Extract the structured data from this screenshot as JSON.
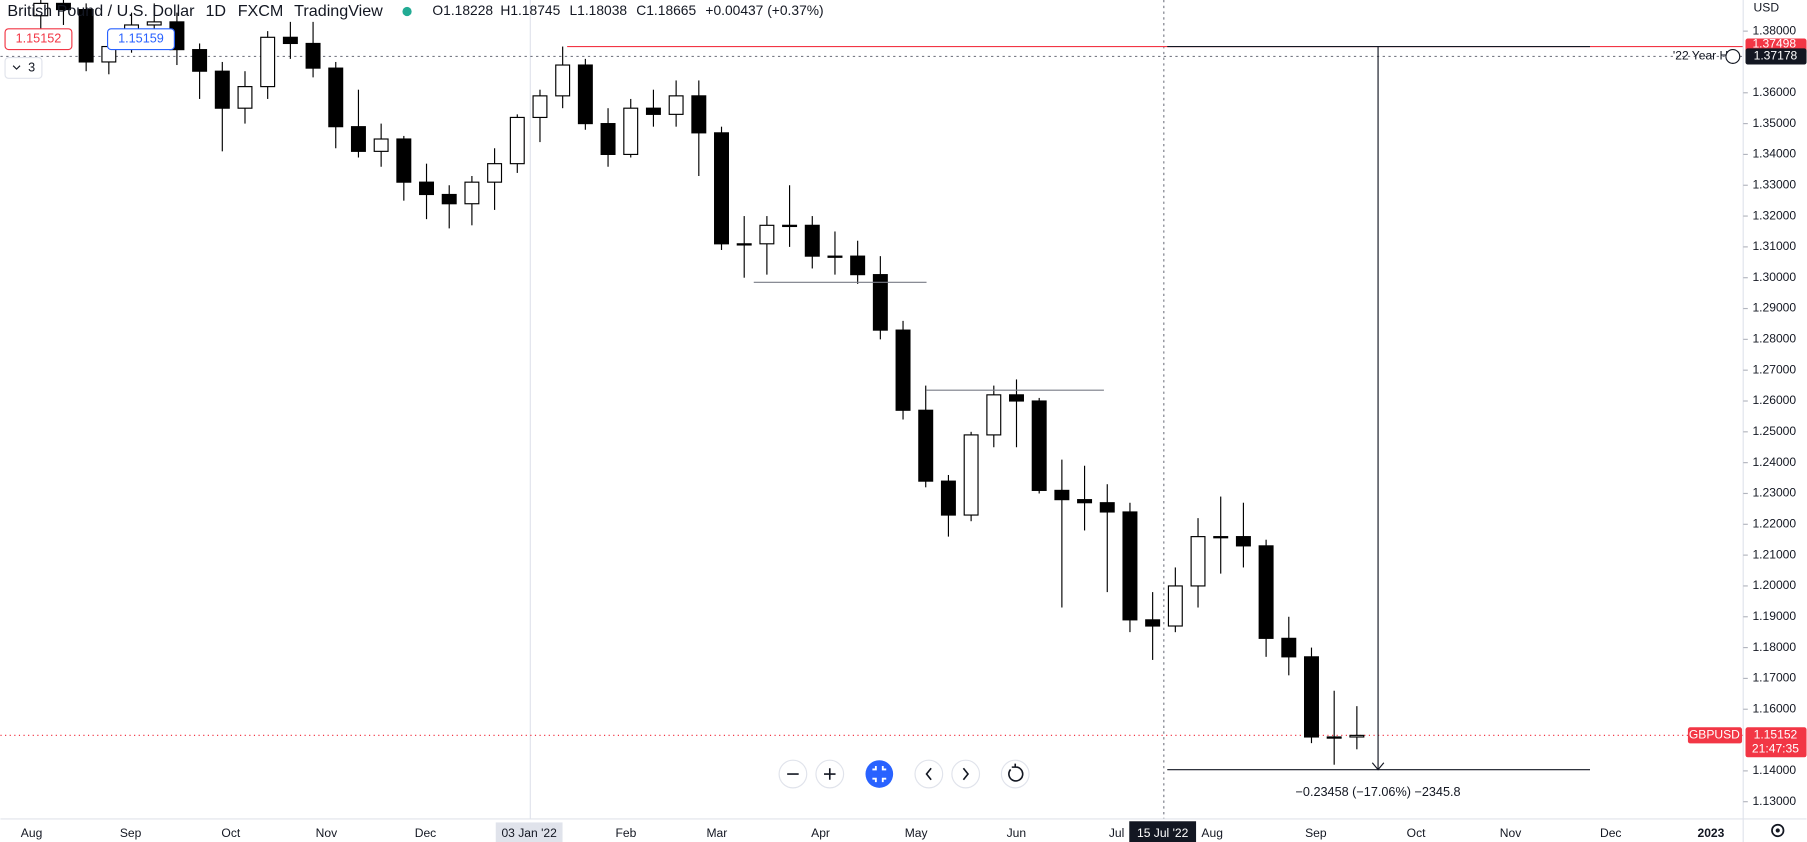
{
  "chart_data": {
    "type": "candlestick",
    "ui": {
      "symbol": "British Pound / U.S. Dollar",
      "interval": "1D",
      "source": "FXCM",
      "platform": "TradingView",
      "open": "O1.18228",
      "high": "H1.18745",
      "low": "L1.18038",
      "close": "C1.18665",
      "change": "+0.00437 (+0.37%)",
      "sell": "1.15152",
      "buy": "1.15159",
      "indicators": "3",
      "currency": "USD",
      "hover_date": "03 Jan '22",
      "cross_date": "15 Jul '22",
      "symbol_tag": "GBPUSD",
      "countdown": "21:47:35",
      "high_note": "'22 Year H"
    },
    "x_labels": [
      "Aug",
      "Sep",
      "Oct",
      "Nov",
      "Dec",
      "Feb",
      "Mar",
      "Apr",
      "May",
      "Jun",
      "Jul",
      "Aug",
      "Sep",
      "Oct",
      "Nov",
      "Dec",
      "2023"
    ],
    "ylim": [
      1.1244,
      1.3901
    ],
    "yticks": [
      {
        "value": 1.38,
        "label": "1.38000"
      },
      {
        "value": 1.36,
        "label": "1.36000"
      },
      {
        "value": 1.35,
        "label": "1.35000"
      },
      {
        "value": 1.34,
        "label": "1.34000"
      },
      {
        "value": 1.33,
        "label": "1.33000"
      },
      {
        "value": 1.32,
        "label": "1.32000"
      },
      {
        "value": 1.31,
        "label": "1.31000"
      },
      {
        "value": 1.3,
        "label": "1.30000"
      },
      {
        "value": 1.29,
        "label": "1.29000"
      },
      {
        "value": 1.28,
        "label": "1.28000"
      },
      {
        "value": 1.27,
        "label": "1.27000"
      },
      {
        "value": 1.26,
        "label": "1.26000"
      },
      {
        "value": 1.25,
        "label": "1.25000"
      },
      {
        "value": 1.24,
        "label": "1.24000"
      },
      {
        "value": 1.23,
        "label": "1.23000"
      },
      {
        "value": 1.22,
        "label": "1.22000"
      },
      {
        "value": 1.21,
        "label": "1.21000"
      },
      {
        "value": 1.2,
        "label": "1.20000"
      },
      {
        "value": 1.19,
        "label": "1.19000"
      },
      {
        "value": 1.18,
        "label": "1.18000"
      },
      {
        "value": 1.17,
        "label": "1.17000"
      },
      {
        "value": 1.16,
        "label": "1.16000"
      },
      {
        "value": 1.14,
        "label": "1.14000"
      },
      {
        "value": 1.13,
        "label": "1.13000"
      }
    ],
    "candles": {
      "open": [
        1.385,
        1.389,
        1.387,
        1.37,
        1.375,
        1.382,
        1.383,
        1.374,
        1.367,
        1.355,
        1.362,
        1.378,
        1.376,
        1.368,
        1.349,
        1.341,
        1.345,
        1.331,
        1.327,
        1.324,
        1.331,
        1.337,
        1.352,
        1.359,
        1.369,
        1.35,
        1.34,
        1.355,
        1.353,
        1.359,
        1.347,
        1.311,
        1.311,
        1.317,
        1.317,
        1.307,
        1.307,
        1.301,
        1.283,
        1.257,
        1.234,
        1.223,
        1.249,
        1.262,
        1.26,
        1.231,
        1.228,
        1.227,
        1.224,
        1.189,
        1.187,
        1.2,
        1.216,
        1.216,
        1.213,
        1.183,
        1.177,
        1.151,
        1.151
      ],
      "high": [
        1.395,
        1.393,
        1.389,
        1.378,
        1.386,
        1.389,
        1.386,
        1.376,
        1.37,
        1.367,
        1.38,
        1.383,
        1.383,
        1.37,
        1.361,
        1.35,
        1.346,
        1.337,
        1.33,
        1.333,
        1.342,
        1.353,
        1.361,
        1.375,
        1.371,
        1.355,
        1.358,
        1.361,
        1.364,
        1.364,
        1.349,
        1.32,
        1.32,
        1.33,
        1.32,
        1.315,
        1.312,
        1.307,
        1.286,
        1.265,
        1.236,
        1.25,
        1.265,
        1.267,
        1.261,
        1.241,
        1.239,
        1.233,
        1.227,
        1.198,
        1.206,
        1.222,
        1.229,
        1.227,
        1.215,
        1.19,
        1.18,
        1.166,
        1.161
      ],
      "low": [
        1.38,
        1.382,
        1.367,
        1.366,
        1.373,
        1.378,
        1.369,
        1.358,
        1.341,
        1.35,
        1.358,
        1.371,
        1.365,
        1.342,
        1.339,
        1.336,
        1.325,
        1.319,
        1.316,
        1.317,
        1.322,
        1.334,
        1.344,
        1.355,
        1.348,
        1.336,
        1.339,
        1.349,
        1.349,
        1.333,
        1.309,
        1.3,
        1.301,
        1.31,
        1.303,
        1.301,
        1.298,
        1.28,
        1.254,
        1.232,
        1.216,
        1.221,
        1.245,
        1.245,
        1.23,
        1.193,
        1.218,
        1.198,
        1.185,
        1.176,
        1.185,
        1.193,
        1.204,
        1.206,
        1.177,
        1.171,
        1.149,
        1.142,
        1.147
      ],
      "close": [
        1.389,
        1.387,
        1.37,
        1.375,
        1.382,
        1.383,
        1.374,
        1.367,
        1.355,
        1.362,
        1.378,
        1.376,
        1.368,
        1.349,
        1.341,
        1.345,
        1.331,
        1.327,
        1.324,
        1.331,
        1.337,
        1.352,
        1.359,
        1.369,
        1.35,
        1.34,
        1.355,
        1.353,
        1.359,
        1.347,
        1.311,
        1.311,
        1.317,
        1.317,
        1.307,
        1.307,
        1.301,
        1.283,
        1.257,
        1.234,
        1.223,
        1.249,
        1.262,
        1.26,
        1.231,
        1.228,
        1.227,
        1.224,
        1.189,
        1.187,
        1.2,
        1.216,
        1.216,
        1.213,
        1.183,
        1.177,
        1.151,
        1.151,
        1.15152
      ]
    },
    "up_color": "#ffffff",
    "down_color": "#000000",
    "wick_color": "#000000",
    "last_price": {
      "value": 1.15152,
      "label": "1.15152",
      "color": "#f23645"
    },
    "year_high": {
      "value": 1.37498,
      "label": "1.37498",
      "color": "#f23645"
    },
    "cross_price": {
      "value": 1.37178,
      "label": "1.37178"
    },
    "levels": [
      1.2985,
      1.2635
    ],
    "measure": {
      "from": 1.37498,
      "to": 1.1404,
      "label": "−0.23458 (−17.06%) −2345.8"
    }
  }
}
